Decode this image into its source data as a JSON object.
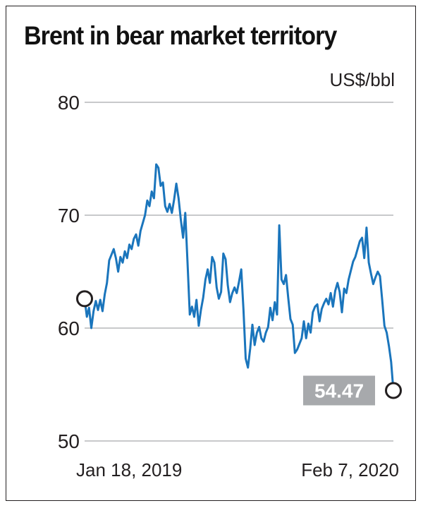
{
  "chart_data": {
    "type": "line",
    "title": "Brent in bear market territory",
    "ylabel": "US$/bbl",
    "ylim": [
      50,
      80
    ],
    "yticks": [
      50,
      60,
      70,
      80
    ],
    "x_labels": [
      "Jan 18, 2019",
      "Feb 7, 2020"
    ],
    "grid": true,
    "line_color": "#1a75bc",
    "start_value": 62.6,
    "end_value": 54.47,
    "end_label": "54.47",
    "series": [
      {
        "name": "",
        "values": [
          62.6,
          61.0,
          61.8,
          60.0,
          61.5,
          62.4,
          61.6,
          62.5,
          61.5,
          63.0,
          64.0,
          66.0,
          66.5,
          67.0,
          66.2,
          65.0,
          66.3,
          65.8,
          66.8,
          66.2,
          67.4,
          67.0,
          67.9,
          68.3,
          67.3,
          68.6,
          69.3,
          70.0,
          71.3,
          70.8,
          72.1,
          71.5,
          74.5,
          74.2,
          72.6,
          72.9,
          70.8,
          70.3,
          71.0,
          70.2,
          71.4,
          72.8,
          71.5,
          69.6,
          68.0,
          70.2,
          65.8,
          61.2,
          61.9,
          61.0,
          62.5,
          60.2,
          61.6,
          62.7,
          64.3,
          65.2,
          64.0,
          66.3,
          65.8,
          63.6,
          62.6,
          63.2,
          66.6,
          66.1,
          63.8,
          62.3,
          63.1,
          63.6,
          63.1,
          64.1,
          65.2,
          61.7,
          57.3,
          56.5,
          58.2,
          60.3,
          58.5,
          59.6,
          60.1,
          59.1,
          58.8,
          59.6,
          60.1,
          61.8,
          60.7,
          62.3,
          61.2,
          69.1,
          64.3,
          63.9,
          64.7,
          62.7,
          60.8,
          60.3,
          57.8,
          58.1,
          58.6,
          59.1,
          60.6,
          59.1,
          60.4,
          59.6,
          61.4,
          61.9,
          62.1,
          60.6,
          61.7,
          62.2,
          62.6,
          62.1,
          63.1,
          61.9,
          63.3,
          64.0,
          63.2,
          61.4,
          63.5,
          63.1,
          64.3,
          65.1,
          65.9,
          66.3,
          67.0,
          67.7,
          68.0,
          66.2,
          68.9,
          65.8,
          64.8,
          63.9,
          64.5,
          65.0,
          64.6,
          62.5,
          60.2,
          59.6,
          58.4,
          57.0,
          54.47
        ]
      }
    ]
  }
}
